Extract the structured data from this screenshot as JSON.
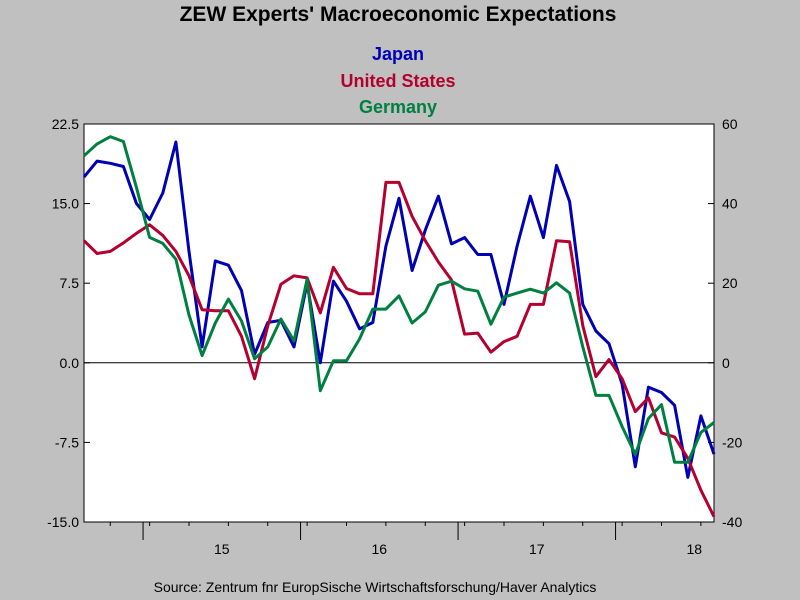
{
  "chart_data": {
    "type": "line",
    "title": "ZEW Experts' Macroeconomic Expectations",
    "left_axis": {
      "ylim": [
        -15.0,
        22.5
      ],
      "ticks": [
        "22.5",
        "15.0",
        "7.5",
        "0.0",
        "-7.5",
        "-15.0"
      ]
    },
    "right_axis": {
      "ylim": [
        -40,
        60
      ],
      "ticks": [
        "60",
        "40",
        "20",
        "0",
        "-20",
        "-40"
      ]
    },
    "x_labels": [
      "15",
      "16",
      "17",
      "18"
    ],
    "grid": false,
    "zero_line": true,
    "legend_placement": "top-center",
    "series": [
      {
        "name": "Japan",
        "axis": "left",
        "color": "#0000b4",
        "values": [
          17.5,
          19.0,
          18.8,
          18.5,
          15.0,
          13.5,
          16.0,
          20.8,
          10.5,
          1.5,
          9.6,
          9.2,
          6.8,
          0.8,
          3.8,
          4.0,
          1.5,
          7.5,
          0.0,
          7.7,
          5.8,
          3.2,
          3.8,
          11.0,
          15.5,
          8.7,
          12.5,
          15.7,
          11.2,
          11.8,
          10.2,
          10.2,
          5.5,
          11.0,
          15.7,
          11.8,
          18.6,
          15.2,
          5.5,
          3.0,
          1.8,
          -2.0,
          -9.8,
          -2.3,
          -2.8,
          -4.0,
          -10.8,
          -5.0,
          -8.6
        ]
      },
      {
        "name": "United States",
        "axis": "left",
        "color": "#b40030",
        "values": [
          11.5,
          10.3,
          10.5,
          11.3,
          12.2,
          13.0,
          12.0,
          10.5,
          8.2,
          5.0,
          4.9,
          4.9,
          2.5,
          -1.5,
          3.5,
          7.4,
          8.2,
          8.0,
          4.7,
          9.0,
          7.0,
          6.5,
          6.5,
          17.0,
          17.0,
          13.8,
          11.5,
          9.5,
          7.8,
          2.7,
          2.8,
          1.0,
          2.0,
          2.5,
          5.5,
          5.5,
          11.5,
          11.4,
          3.5,
          -1.3,
          0.3,
          -1.5,
          -4.6,
          -3.3,
          -6.6,
          -7.0,
          -9.0,
          -12.0,
          -14.5
        ]
      },
      {
        "name": "Germany",
        "axis": "right",
        "color": "#008040",
        "values": [
          52,
          55,
          56.8,
          55.6,
          44,
          31.5,
          30,
          26,
          12,
          1.8,
          10,
          16,
          10.5,
          1,
          4,
          11,
          5.5,
          21,
          -7,
          0.5,
          0.5,
          6,
          13.5,
          13.5,
          16.8,
          10,
          12.8,
          19.5,
          20.5,
          18.6,
          18,
          9.7,
          16.5,
          17.5,
          18.5,
          17.5,
          20.1,
          17.5,
          4,
          -8.2,
          -8.2,
          -16,
          -23,
          -14,
          -10.5,
          -25,
          -25,
          -17.5,
          -15
        ]
      }
    ],
    "source": "Source:  Zentrum fnr EuropSische Wirtschaftsforschung/Haver Analytics"
  }
}
